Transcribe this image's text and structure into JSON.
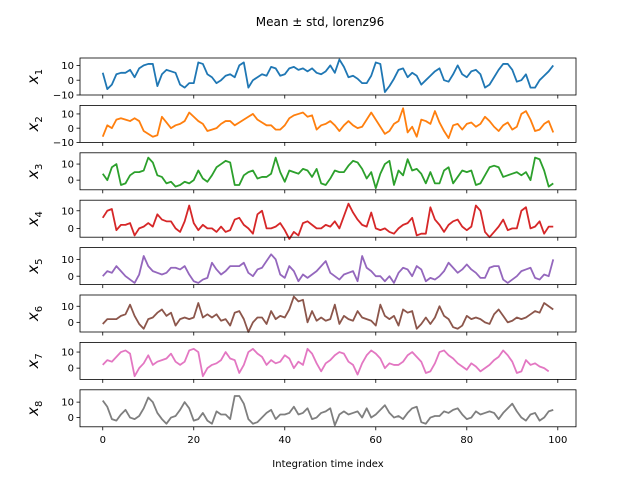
{
  "chart_data": {
    "type": "line",
    "title": "Mean ± std, lorenz96",
    "xlabel": "Integration time index",
    "xlim": [
      -5,
      104
    ],
    "xticks": [
      0,
      20,
      40,
      60,
      80,
      100
    ],
    "xtick_labels": [
      "0",
      "20",
      "40",
      "60",
      "80",
      "100"
    ],
    "grid": false,
    "series": [
      {
        "name": "x",
        "sub": "1",
        "color": "#1f77b4",
        "ylim": [
          -10,
          15
        ],
        "yticks": [
          -10,
          0,
          10
        ],
        "ytick_labels": [
          "−10",
          "0",
          "10"
        ],
        "values": [
          5,
          -6,
          -3,
          4,
          5,
          5,
          7,
          2,
          8,
          10,
          11,
          11,
          -4,
          4,
          7,
          6,
          5,
          -3,
          -5,
          -2,
          -2,
          12,
          11,
          4,
          2,
          -2,
          0,
          3,
          4,
          2,
          10,
          12,
          -5,
          0,
          2,
          4,
          3,
          9,
          8,
          3,
          4,
          8,
          9,
          7,
          8,
          6,
          8,
          5,
          4,
          6,
          10,
          5,
          14,
          9,
          2,
          3,
          1,
          -2,
          -2,
          3,
          12,
          11,
          -8,
          -4,
          1,
          7,
          8,
          2,
          5,
          3,
          -3,
          0,
          3,
          6,
          8,
          0,
          -1,
          4,
          10,
          4,
          2,
          6,
          7,
          4,
          -5,
          -3,
          2,
          7,
          11,
          11,
          7,
          -1,
          0,
          4,
          -5,
          -5,
          0,
          3,
          6,
          10
        ]
      },
      {
        "name": "x",
        "sub": "2",
        "color": "#ff7f0e",
        "ylim": [
          -10,
          16
        ],
        "yticks": [
          -10,
          0,
          10
        ],
        "ytick_labels": [
          "−10",
          "0",
          "10"
        ],
        "values": [
          -6,
          2,
          0,
          6,
          7,
          6,
          5,
          7,
          5,
          -2,
          -4,
          -6,
          -5,
          8,
          4,
          0,
          2,
          3,
          5,
          11,
          8,
          5,
          3,
          -2,
          -1,
          0,
          3,
          5,
          5,
          2,
          4,
          6,
          8,
          10,
          6,
          4,
          2,
          2,
          -1,
          -1,
          2,
          7,
          9,
          10,
          11,
          8,
          9,
          -1,
          2,
          3,
          5,
          2,
          -2,
          2,
          5,
          2,
          0,
          1,
          6,
          11,
          6,
          1,
          -4,
          -2,
          3,
          5,
          14,
          -3,
          1,
          -6,
          6,
          5,
          3,
          12,
          4,
          -2,
          -7,
          2,
          3,
          -1,
          3,
          4,
          1,
          3,
          8,
          5,
          1,
          -2,
          2,
          4,
          -1,
          1,
          10,
          12,
          6,
          -2,
          -1,
          3,
          5,
          -3
        ]
      },
      {
        "name": "x",
        "sub": "3",
        "color": "#2ca02c",
        "ylim": [
          -6,
          17
        ],
        "yticks": [
          0,
          10
        ],
        "ytick_labels": [
          "0",
          "10"
        ],
        "values": [
          4,
          0,
          8,
          10,
          -3,
          -2,
          3,
          5,
          5,
          6,
          14,
          11,
          3,
          2,
          -2,
          -1,
          -4,
          -3,
          -1,
          -2,
          0,
          6,
          1,
          -1,
          3,
          8,
          10,
          12,
          11,
          -3,
          -3,
          3,
          5,
          6,
          1,
          2,
          2,
          4,
          14,
          5,
          -1,
          6,
          5,
          4,
          7,
          6,
          2,
          7,
          -2,
          -3,
          1,
          6,
          5,
          5,
          9,
          12,
          11,
          7,
          1,
          5,
          -5,
          4,
          10,
          12,
          -3,
          6,
          3,
          13,
          6,
          7,
          4,
          -2,
          5,
          -2,
          -2,
          6,
          8,
          -2,
          2,
          6,
          5,
          6,
          -3,
          -2,
          3,
          8,
          9,
          8,
          2,
          3,
          4,
          5,
          3,
          5,
          0,
          14,
          13,
          6,
          -4,
          -2
        ]
      },
      {
        "name": "x",
        "sub": "4",
        "color": "#d62728",
        "ylim": [
          -5,
          16
        ],
        "yticks": [
          0,
          10
        ],
        "ytick_labels": [
          "0",
          "10"
        ],
        "values": [
          6,
          10,
          11,
          -1,
          2,
          2,
          3,
          -4,
          0,
          1,
          3,
          1,
          8,
          5,
          4,
          4,
          0,
          -2,
          4,
          13,
          3,
          -1,
          2,
          0,
          0,
          -2,
          1,
          -2,
          -1,
          5,
          6,
          2,
          0,
          -3,
          8,
          10,
          0,
          0,
          1,
          3,
          -1,
          -6,
          -2,
          -4,
          3,
          4,
          2,
          0,
          0,
          2,
          1,
          4,
          0,
          7,
          14,
          9,
          5,
          2,
          1,
          9,
          0,
          -1,
          0,
          -2,
          -3,
          0,
          2,
          3,
          6,
          -4,
          -3,
          -3,
          12,
          5,
          2,
          -2,
          2,
          4,
          5,
          1,
          -1,
          1,
          13,
          10,
          -2,
          -5,
          -2,
          1,
          5,
          -1,
          0,
          0,
          10,
          12,
          0,
          1,
          4,
          -3,
          1,
          1
        ]
      },
      {
        "name": "x",
        "sub": "5",
        "color": "#9467bd",
        "ylim": [
          -5,
          17
        ],
        "yticks": [
          0,
          10
        ],
        "ytick_labels": [
          "0",
          "10"
        ],
        "values": [
          0,
          3,
          2,
          6,
          3,
          0,
          -2,
          -4,
          1,
          12,
          6,
          3,
          2,
          1,
          2,
          5,
          5,
          4,
          6,
          1,
          -3,
          -4,
          -2,
          -1,
          8,
          4,
          1,
          3,
          6,
          6,
          6,
          8,
          2,
          0,
          4,
          5,
          9,
          13,
          10,
          1,
          -1,
          6,
          3,
          -3,
          1,
          -1,
          1,
          3,
          6,
          9,
          2,
          0,
          -2,
          1,
          2,
          3,
          -3,
          12,
          5,
          3,
          0,
          0,
          -3,
          0,
          -4,
          2,
          5,
          4,
          0,
          6,
          4,
          -3,
          -1,
          -2,
          0,
          3,
          8,
          5,
          2,
          4,
          7,
          4,
          2,
          -1,
          -1,
          5,
          6,
          6,
          -2,
          -4,
          -2,
          0,
          3,
          4,
          5,
          -1,
          -2,
          1,
          0,
          10
        ]
      },
      {
        "name": "x",
        "sub": "6",
        "color": "#8c564b",
        "ylim": [
          -6,
          17
        ],
        "yticks": [
          0,
          10
        ],
        "ytick_labels": [
          "0",
          "10"
        ],
        "values": [
          -1,
          2,
          2,
          2,
          4,
          5,
          11,
          4,
          -1,
          -4,
          2,
          3,
          6,
          8,
          4,
          6,
          -2,
          2,
          3,
          2,
          3,
          12,
          3,
          5,
          3,
          5,
          1,
          2,
          -2,
          6,
          7,
          2,
          -6,
          0,
          3,
          3,
          -1,
          7,
          2,
          4,
          3,
          8,
          16,
          13,
          14,
          0,
          7,
          1,
          3,
          1,
          2,
          11,
          -1,
          4,
          2,
          1,
          7,
          3,
          2,
          1,
          -2,
          11,
          4,
          2,
          4,
          -2,
          8,
          6,
          7,
          -4,
          -1,
          3,
          -1,
          3,
          10,
          4,
          2,
          -3,
          -4,
          -2,
          4,
          2,
          3,
          2,
          0,
          -1,
          5,
          8,
          4,
          0,
          1,
          3,
          2,
          3,
          5,
          7,
          6,
          12,
          10,
          8
        ]
      },
      {
        "name": "x",
        "sub": "7",
        "color": "#e377c2",
        "ylim": [
          -7,
          16
        ],
        "yticks": [
          0,
          10
        ],
        "ytick_labels": [
          "0",
          "10"
        ],
        "values": [
          2,
          5,
          4,
          7,
          10,
          11,
          9,
          -5,
          0,
          3,
          8,
          2,
          4,
          5,
          6,
          9,
          4,
          2,
          4,
          11,
          12,
          10,
          -5,
          0,
          2,
          3,
          5,
          10,
          6,
          5,
          -3,
          2,
          10,
          12,
          9,
          7,
          2,
          5,
          3,
          4,
          8,
          6,
          0,
          4,
          2,
          12,
          9,
          3,
          -2,
          3,
          5,
          8,
          10,
          9,
          4,
          2,
          -4,
          3,
          8,
          11,
          9,
          6,
          0,
          3,
          2,
          2,
          4,
          8,
          10,
          7,
          4,
          -3,
          -2,
          3,
          10,
          11,
          8,
          6,
          3,
          1,
          -1,
          3,
          1,
          -2,
          0,
          2,
          5,
          7,
          11,
          8,
          4,
          -3,
          -2,
          5,
          2,
          3,
          1,
          0,
          -2
        ]
      },
      {
        "name": "x",
        "sub": "8",
        "color": "#7f7f7f",
        "ylim": [
          -6,
          18
        ],
        "yticks": [
          0,
          10
        ],
        "ytick_labels": [
          "0",
          "10"
        ],
        "values": [
          11,
          7,
          -1,
          -2,
          2,
          5,
          0,
          -1,
          1,
          6,
          13,
          10,
          3,
          -1,
          -4,
          0,
          1,
          5,
          10,
          6,
          -2,
          -1,
          3,
          -2,
          -4,
          4,
          2,
          2,
          -1,
          14,
          14,
          9,
          -1,
          -4,
          -3,
          0,
          3,
          5,
          -1,
          2,
          2,
          3,
          7,
          2,
          3,
          6,
          -1,
          0,
          3,
          4,
          6,
          -5,
          2,
          4,
          2,
          3,
          4,
          0,
          6,
          0,
          2,
          5,
          8,
          3,
          0,
          1,
          -1,
          3,
          6,
          7,
          -3,
          -4,
          0,
          1,
          1,
          4,
          3,
          5,
          6,
          2,
          -1,
          0,
          4,
          2,
          3,
          4,
          3,
          -1,
          3,
          6,
          9,
          4,
          0,
          -2,
          2,
          3,
          -2,
          0,
          4,
          5
        ]
      }
    ]
  }
}
